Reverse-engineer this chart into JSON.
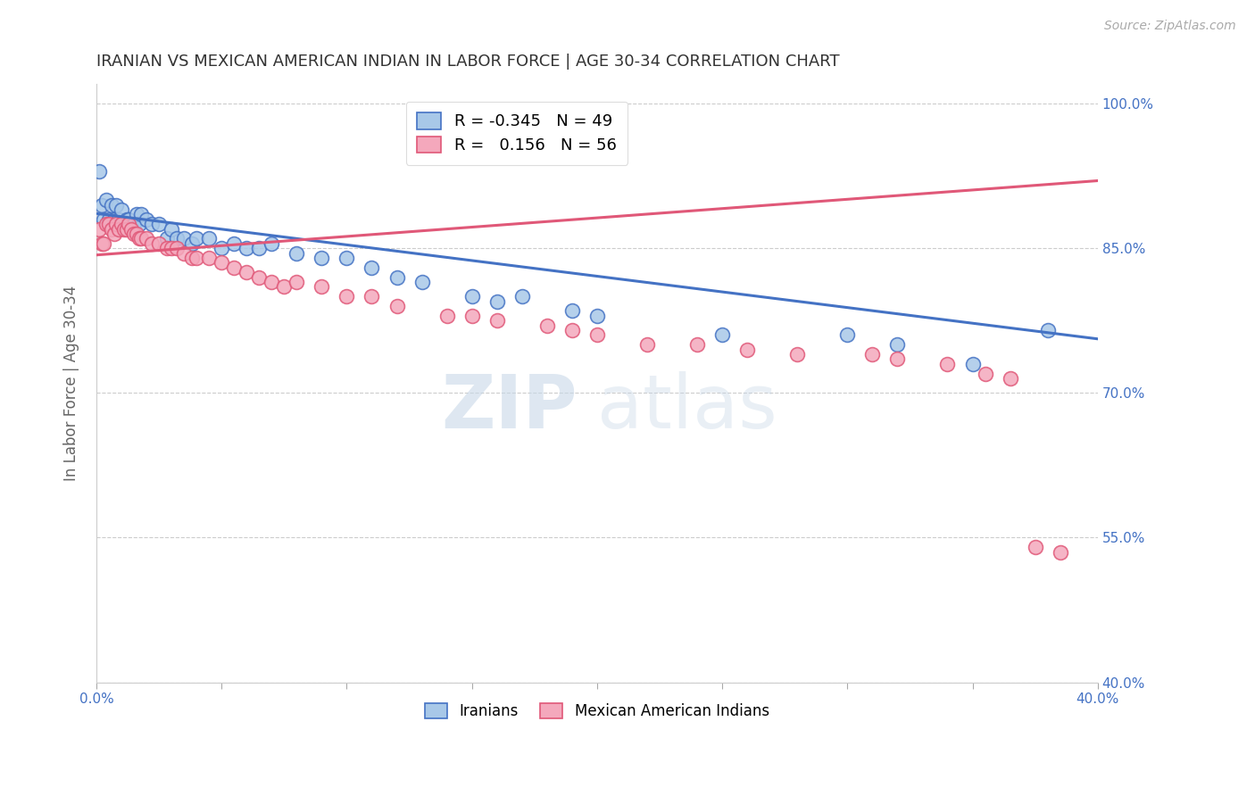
{
  "title": "IRANIAN VS MEXICAN AMERICAN INDIAN IN LABOR FORCE | AGE 30-34 CORRELATION CHART",
  "source": "Source: ZipAtlas.com",
  "ylabel": "In Labor Force | Age 30-34",
  "xlim": [
    0.0,
    0.4
  ],
  "ylim": [
    0.4,
    1.02
  ],
  "xticks": [
    0.0,
    0.05,
    0.1,
    0.15,
    0.2,
    0.25,
    0.3,
    0.35,
    0.4
  ],
  "xtick_labels": [
    "0.0%",
    "",
    "",
    "",
    "",
    "",
    "",
    "",
    "40.0%"
  ],
  "ytick_positions": [
    0.4,
    0.55,
    0.7,
    0.85,
    1.0
  ],
  "ytick_labels": [
    "40.0%",
    "55.0%",
    "70.0%",
    "85.0%",
    "100.0%"
  ],
  "blue_r": -0.345,
  "blue_n": 49,
  "pink_r": 0.156,
  "pink_n": 56,
  "blue_color": "#a8c8e8",
  "pink_color": "#f4a8bc",
  "blue_line_color": "#4472c4",
  "pink_line_color": "#e05878",
  "legend_label_blue": "Iranians",
  "legend_label_pink": "Mexican American Indians",
  "blue_scatter_x": [
    0.001,
    0.002,
    0.003,
    0.004,
    0.005,
    0.006,
    0.007,
    0.008,
    0.009,
    0.01,
    0.011,
    0.012,
    0.013,
    0.014,
    0.015,
    0.016,
    0.017,
    0.018,
    0.02,
    0.022,
    0.025,
    0.028,
    0.03,
    0.032,
    0.035,
    0.038,
    0.04,
    0.045,
    0.05,
    0.055,
    0.06,
    0.065,
    0.07,
    0.08,
    0.09,
    0.1,
    0.11,
    0.12,
    0.13,
    0.15,
    0.16,
    0.17,
    0.19,
    0.2,
    0.25,
    0.3,
    0.32,
    0.35,
    0.38
  ],
  "blue_scatter_y": [
    0.93,
    0.895,
    0.88,
    0.9,
    0.88,
    0.895,
    0.88,
    0.895,
    0.88,
    0.89,
    0.875,
    0.88,
    0.88,
    0.875,
    0.875,
    0.885,
    0.875,
    0.885,
    0.88,
    0.875,
    0.875,
    0.86,
    0.87,
    0.86,
    0.86,
    0.855,
    0.86,
    0.86,
    0.85,
    0.855,
    0.85,
    0.85,
    0.855,
    0.845,
    0.84,
    0.84,
    0.83,
    0.82,
    0.815,
    0.8,
    0.795,
    0.8,
    0.785,
    0.78,
    0.76,
    0.76,
    0.75,
    0.73,
    0.765
  ],
  "pink_scatter_x": [
    0.001,
    0.002,
    0.003,
    0.004,
    0.005,
    0.006,
    0.007,
    0.008,
    0.009,
    0.01,
    0.011,
    0.012,
    0.013,
    0.014,
    0.015,
    0.016,
    0.017,
    0.018,
    0.02,
    0.022,
    0.025,
    0.028,
    0.03,
    0.032,
    0.035,
    0.038,
    0.04,
    0.045,
    0.05,
    0.055,
    0.06,
    0.065,
    0.07,
    0.075,
    0.08,
    0.09,
    0.1,
    0.11,
    0.12,
    0.14,
    0.15,
    0.16,
    0.18,
    0.19,
    0.2,
    0.22,
    0.24,
    0.26,
    0.28,
    0.31,
    0.32,
    0.34,
    0.355,
    0.365,
    0.375,
    0.385
  ],
  "pink_scatter_y": [
    0.87,
    0.855,
    0.855,
    0.875,
    0.875,
    0.87,
    0.865,
    0.875,
    0.87,
    0.875,
    0.87,
    0.87,
    0.875,
    0.87,
    0.865,
    0.865,
    0.86,
    0.86,
    0.86,
    0.855,
    0.855,
    0.85,
    0.85,
    0.85,
    0.845,
    0.84,
    0.84,
    0.84,
    0.835,
    0.83,
    0.825,
    0.82,
    0.815,
    0.81,
    0.815,
    0.81,
    0.8,
    0.8,
    0.79,
    0.78,
    0.78,
    0.775,
    0.77,
    0.765,
    0.76,
    0.75,
    0.75,
    0.745,
    0.74,
    0.74,
    0.735,
    0.73,
    0.72,
    0.715,
    0.54,
    0.535
  ],
  "blue_line_x0": 0.0,
  "blue_line_y0": 0.886,
  "blue_line_x1": 0.4,
  "blue_line_y1": 0.756,
  "pink_line_x0": 0.0,
  "pink_line_y0": 0.843,
  "pink_line_x1": 0.4,
  "pink_line_y1": 0.92,
  "watermark_zip": "ZIP",
  "watermark_atlas": "atlas",
  "background_color": "#ffffff",
  "grid_color": "#cccccc",
  "title_color": "#333333",
  "axis_label_color": "#666666",
  "tick_color": "#4472c4"
}
